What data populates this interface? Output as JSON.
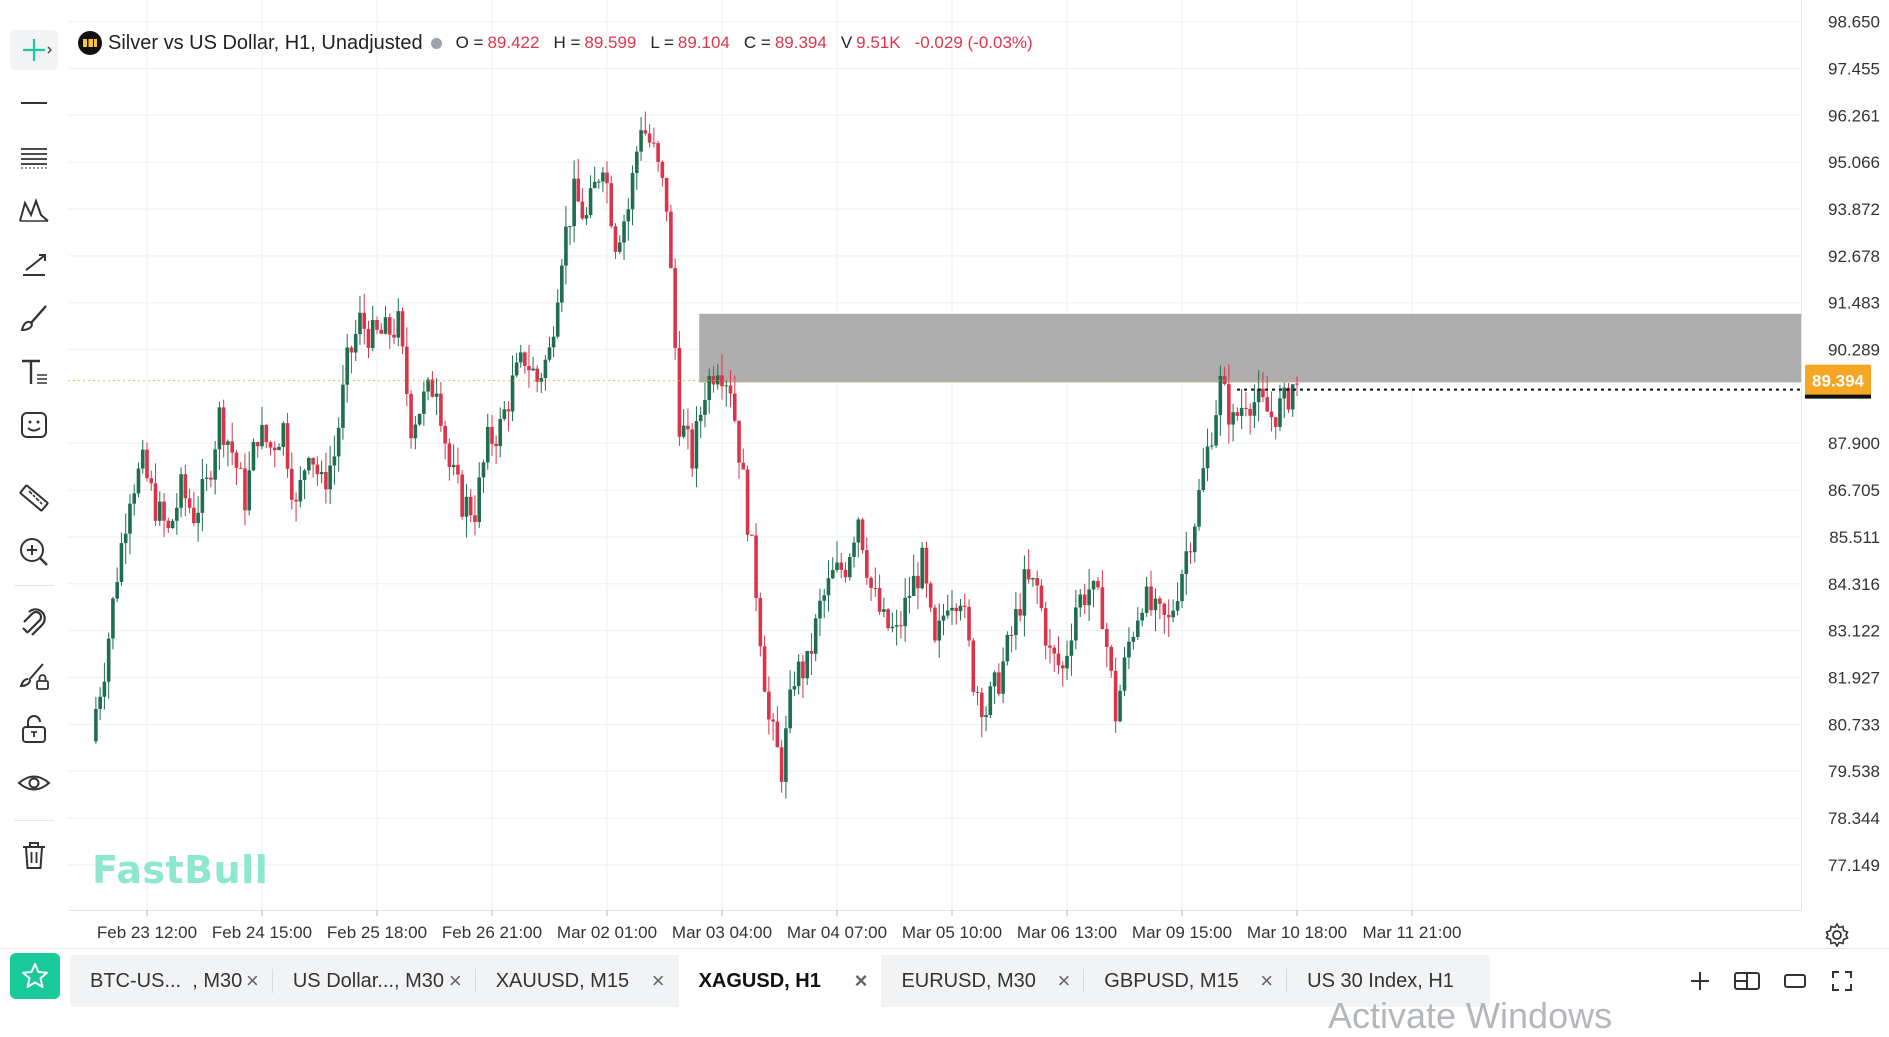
{
  "legend": {
    "title": "Silver vs US Dollar, H1, Unadjusted",
    "open_label": "O =",
    "open": "89.422",
    "high_label": "H =",
    "high": "89.599",
    "low_label": "L =",
    "low": "89.104",
    "close_label": "C =",
    "close": "89.394",
    "volume_label": "V",
    "volume": "9.51K",
    "change": "-0.029 (-0.03%)"
  },
  "watermark": "FastBull",
  "overlay_text": "Activate Windows",
  "colors": {
    "up": "#1e6e4f",
    "down": "#d9344a",
    "price_tag": "#f5a623",
    "zone": "#a9a9a9",
    "accent": "#18c99b"
  },
  "toolbar": {
    "icons": [
      "crosshair-icon",
      "horizontal-line-icon",
      "fib-retracement-icon",
      "pattern-icon",
      "trend-tool-icon",
      "brush-icon",
      "text-icon",
      "emoji-icon",
      "ruler-icon",
      "zoom-in-icon",
      "magnet-icon",
      "lock-drawing-icon",
      "unlock-icon",
      "eye-icon",
      "trash-icon"
    ]
  },
  "price_axis": {
    "labels": [
      "98.650",
      "97.455",
      "96.261",
      "95.066",
      "93.872",
      "92.678",
      "91.483",
      "90.289",
      "87.900",
      "86.705",
      "85.511",
      "84.316",
      "83.122",
      "81.927",
      "80.733",
      "79.538",
      "78.344",
      "77.149"
    ],
    "current_price": "89.394"
  },
  "time_axis": {
    "labels": [
      "Feb 23 12:00",
      "Feb 24 15:00",
      "Feb 25 18:00",
      "Feb 26 21:00",
      "Mar 02 01:00",
      "Mar 03 04:00",
      "Mar 04 07:00",
      "Mar 05 10:00",
      "Mar 06 13:00",
      "Mar 09 15:00",
      "Mar 10 18:00",
      "Mar 11 21:00"
    ]
  },
  "chart_data": {
    "type": "candlestick",
    "symbol": "XAGUSD",
    "timeframe": "H1",
    "ylim": [
      76.0,
      99.2
    ],
    "zone": {
      "from": "Mar 03 01:00",
      "to": "Mar 11 21:00",
      "low": 89.45,
      "high": 91.2
    },
    "last_price": 89.394,
    "close_path": [
      {
        "x": "Feb 23 00:00",
        "close": 80.6
      },
      {
        "x": "Feb 23 03:00",
        "close": 82.2
      },
      {
        "x": "Feb 23 06:00",
        "close": 84.6
      },
      {
        "x": "Feb 23 09:00",
        "close": 86.7
      },
      {
        "x": "Feb 23 12:00",
        "close": 87.3
      },
      {
        "x": "Feb 23 15:00",
        "close": 86.3
      },
      {
        "x": "Feb 23 18:00",
        "close": 85.6
      },
      {
        "x": "Feb 23 21:00",
        "close": 86.7
      },
      {
        "x": "Feb 24 00:00",
        "close": 86.1
      },
      {
        "x": "Feb 24 03:00",
        "close": 86.8
      },
      {
        "x": "Feb 24 06:00",
        "close": 88.6
      },
      {
        "x": "Feb 24 09:00",
        "close": 87.7
      },
      {
        "x": "Feb 24 12:00",
        "close": 86.5
      },
      {
        "x": "Feb 24 15:00",
        "close": 88.2
      },
      {
        "x": "Feb 24 18:00",
        "close": 87.8
      },
      {
        "x": "Feb 24 21:00",
        "close": 88.3
      },
      {
        "x": "Feb 25 00:00",
        "close": 86.2
      },
      {
        "x": "Feb 25 03:00",
        "close": 87.9
      },
      {
        "x": "Feb 25 06:00",
        "close": 86.8
      },
      {
        "x": "Feb 25 09:00",
        "close": 87.6
      },
      {
        "x": "Feb 25 12:00",
        "close": 89.9
      },
      {
        "x": "Feb 25 15:00",
        "close": 91.0
      },
      {
        "x": "Feb 25 18:00",
        "close": 90.6
      },
      {
        "x": "Feb 25 21:00",
        "close": 90.7
      },
      {
        "x": "Feb 26 00:00",
        "close": 90.9
      },
      {
        "x": "Feb 26 03:00",
        "close": 88.4
      },
      {
        "x": "Feb 26 06:00",
        "close": 89.0
      },
      {
        "x": "Feb 26 09:00",
        "close": 89.5
      },
      {
        "x": "Feb 26 12:00",
        "close": 87.3
      },
      {
        "x": "Feb 26 15:00",
        "close": 86.4
      },
      {
        "x": "Feb 26 18:00",
        "close": 86.2
      },
      {
        "x": "Feb 26 21:00",
        "close": 87.9
      },
      {
        "x": "Feb 27 00:00",
        "close": 88.3
      },
      {
        "x": "Feb 27 03:00",
        "close": 89.4
      },
      {
        "x": "Feb 27 06:00",
        "close": 90.1
      },
      {
        "x": "Feb 27 09:00",
        "close": 89.5
      },
      {
        "x": "Feb 27 12:00",
        "close": 90.2
      },
      {
        "x": "Feb 27 15:00",
        "close": 92.8
      },
      {
        "x": "Feb 27 18:00",
        "close": 94.2
      },
      {
        "x": "Feb 27 21:00",
        "close": 93.6
      },
      {
        "x": "Mar 02 01:00",
        "close": 95.2
      },
      {
        "x": "Mar 02 04:00",
        "close": 93.1
      },
      {
        "x": "Mar 02 07:00",
        "close": 93.9
      },
      {
        "x": "Mar 02 10:00",
        "close": 96.1
      },
      {
        "x": "Mar 02 13:00",
        "close": 95.3
      },
      {
        "x": "Mar 02 16:00",
        "close": 94.0
      },
      {
        "x": "Mar 02 19:00",
        "close": 88.5
      },
      {
        "x": "Mar 02 22:00",
        "close": 87.5
      },
      {
        "x": "Mar 03 01:00",
        "close": 89.3
      },
      {
        "x": "Mar 03 04:00",
        "close": 90.0
      },
      {
        "x": "Mar 03 07:00",
        "close": 89.4
      },
      {
        "x": "Mar 03 10:00",
        "close": 86.9
      },
      {
        "x": "Mar 03 13:00",
        "close": 84.2
      },
      {
        "x": "Mar 03 16:00",
        "close": 80.8
      },
      {
        "x": "Mar 03 19:00",
        "close": 79.6
      },
      {
        "x": "Mar 03 22:00",
        "close": 82.0
      },
      {
        "x": "Mar 04 01:00",
        "close": 82.2
      },
      {
        "x": "Mar 04 04:00",
        "close": 83.7
      },
      {
        "x": "Mar 04 07:00",
        "close": 84.5
      },
      {
        "x": "Mar 04 10:00",
        "close": 84.8
      },
      {
        "x": "Mar 04 13:00",
        "close": 86.1
      },
      {
        "x": "Mar 04 16:00",
        "close": 84.2
      },
      {
        "x": "Mar 04 19:00",
        "close": 83.3
      },
      {
        "x": "Mar 04 22:00",
        "close": 83.0
      },
      {
        "x": "Mar 05 01:00",
        "close": 84.1
      },
      {
        "x": "Mar 05 04:00",
        "close": 84.8
      },
      {
        "x": "Mar 05 07:00",
        "close": 82.6
      },
      {
        "x": "Mar 05 10:00",
        "close": 84.0
      },
      {
        "x": "Mar 05 13:00",
        "close": 84.1
      },
      {
        "x": "Mar 05 16:00",
        "close": 81.9
      },
      {
        "x": "Mar 05 19:00",
        "close": 81.1
      },
      {
        "x": "Mar 05 22:00",
        "close": 81.9
      },
      {
        "x": "Mar 06 01:00",
        "close": 83.0
      },
      {
        "x": "Mar 06 04:00",
        "close": 84.3
      },
      {
        "x": "Mar 06 07:00",
        "close": 84.2
      },
      {
        "x": "Mar 06 10:00",
        "close": 82.5
      },
      {
        "x": "Mar 06 13:00",
        "close": 82.1
      },
      {
        "x": "Mar 06 16:00",
        "close": 83.8
      },
      {
        "x": "Mar 06 19:00",
        "close": 84.2
      },
      {
        "x": "Mar 06 22:00",
        "close": 83.6
      },
      {
        "x": "Mar 09 01:00",
        "close": 81.0
      },
      {
        "x": "Mar 09 04:00",
        "close": 82.8
      },
      {
        "x": "Mar 09 07:00",
        "close": 84.0
      },
      {
        "x": "Mar 09 10:00",
        "close": 83.5
      },
      {
        "x": "Mar 09 13:00",
        "close": 83.3
      },
      {
        "x": "Mar 09 16:00",
        "close": 84.7
      },
      {
        "x": "Mar 09 19:00",
        "close": 86.0
      },
      {
        "x": "Mar 09 22:00",
        "close": 87.7
      },
      {
        "x": "Mar 10 01:00",
        "close": 89.4
      },
      {
        "x": "Mar 10 04:00",
        "close": 88.4
      },
      {
        "x": "Mar 10 07:00",
        "close": 89.1
      },
      {
        "x": "Mar 10 10:00",
        "close": 88.9
      },
      {
        "x": "Mar 10 13:00",
        "close": 88.6
      },
      {
        "x": "Mar 10 16:00",
        "close": 88.9
      },
      {
        "x": "Mar 10 18:00",
        "close": 89.394
      }
    ]
  },
  "tabs": [
    {
      "label": "BTC-US...  , M30",
      "active": false
    },
    {
      "label": "US Dollar..., M30",
      "active": false
    },
    {
      "label": "XAUUSD, M15",
      "active": false
    },
    {
      "label": "XAGUSD, H1",
      "active": true
    },
    {
      "label": "EURUSD, M30",
      "active": false
    },
    {
      "label": "GBPUSD, M15",
      "active": false
    },
    {
      "label": "US 30 Index, H1",
      "active": false
    }
  ],
  "close_glyph": "×"
}
